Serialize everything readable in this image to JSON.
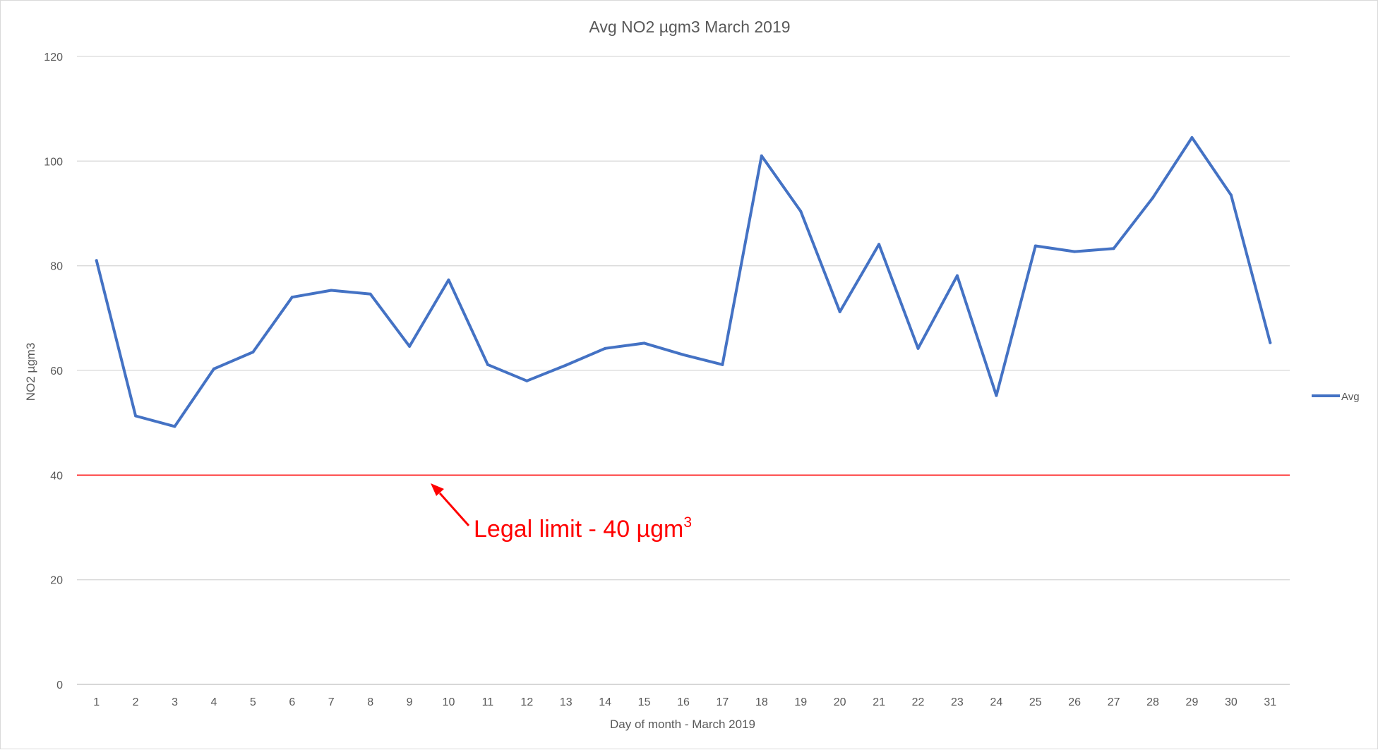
{
  "chart_data": {
    "type": "line",
    "title": "Avg NO2 µgm3 March 2019",
    "xlabel": "Day of month - March 2019",
    "ylabel": "NO2 µgm3",
    "ylim": [
      0,
      120
    ],
    "yticks": [
      0,
      20,
      40,
      60,
      80,
      100,
      120
    ],
    "grid": true,
    "legend_position": "right",
    "categories": [
      "1",
      "2",
      "3",
      "4",
      "5",
      "6",
      "7",
      "8",
      "9",
      "10",
      "11",
      "12",
      "13",
      "14",
      "15",
      "16",
      "17",
      "18",
      "19",
      "20",
      "21",
      "22",
      "23",
      "24",
      "25",
      "26",
      "27",
      "28",
      "29",
      "30",
      "31"
    ],
    "series": [
      {
        "name": "Avg",
        "color": "#4472c4",
        "values": [
          81,
          51.3,
          49.3,
          60.3,
          63.5,
          74,
          75.3,
          74.6,
          64.6,
          77.3,
          61.1,
          58,
          61,
          64.2,
          65.2,
          63,
          61.1,
          101,
          90.4,
          71.2,
          84.1,
          64.2,
          78.1,
          55.2,
          83.8,
          82.7,
          83.3,
          93,
          104.5,
          93.5,
          65.3
        ]
      }
    ],
    "reference_line": {
      "value": 40,
      "color": "#ff0000"
    },
    "annotation": {
      "text": "Legal limit - 40 µgm",
      "superscript": "3",
      "color": "#ff0000"
    }
  }
}
